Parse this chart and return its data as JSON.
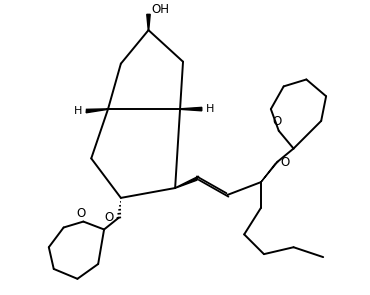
{
  "background_color": "#ffffff",
  "line_color": "#000000",
  "line_width": 1.4,
  "figsize": [
    3.7,
    2.95
  ],
  "dpi": 100,
  "atoms": {
    "OH_label": "OH",
    "O_ring_label": "O",
    "H_left_label": "H",
    "H_right_label": "H",
    "O_thp1_label": "O",
    "O_thp2_label": "O",
    "O_ether1_label": "O",
    "O_ether2_label": "O"
  }
}
